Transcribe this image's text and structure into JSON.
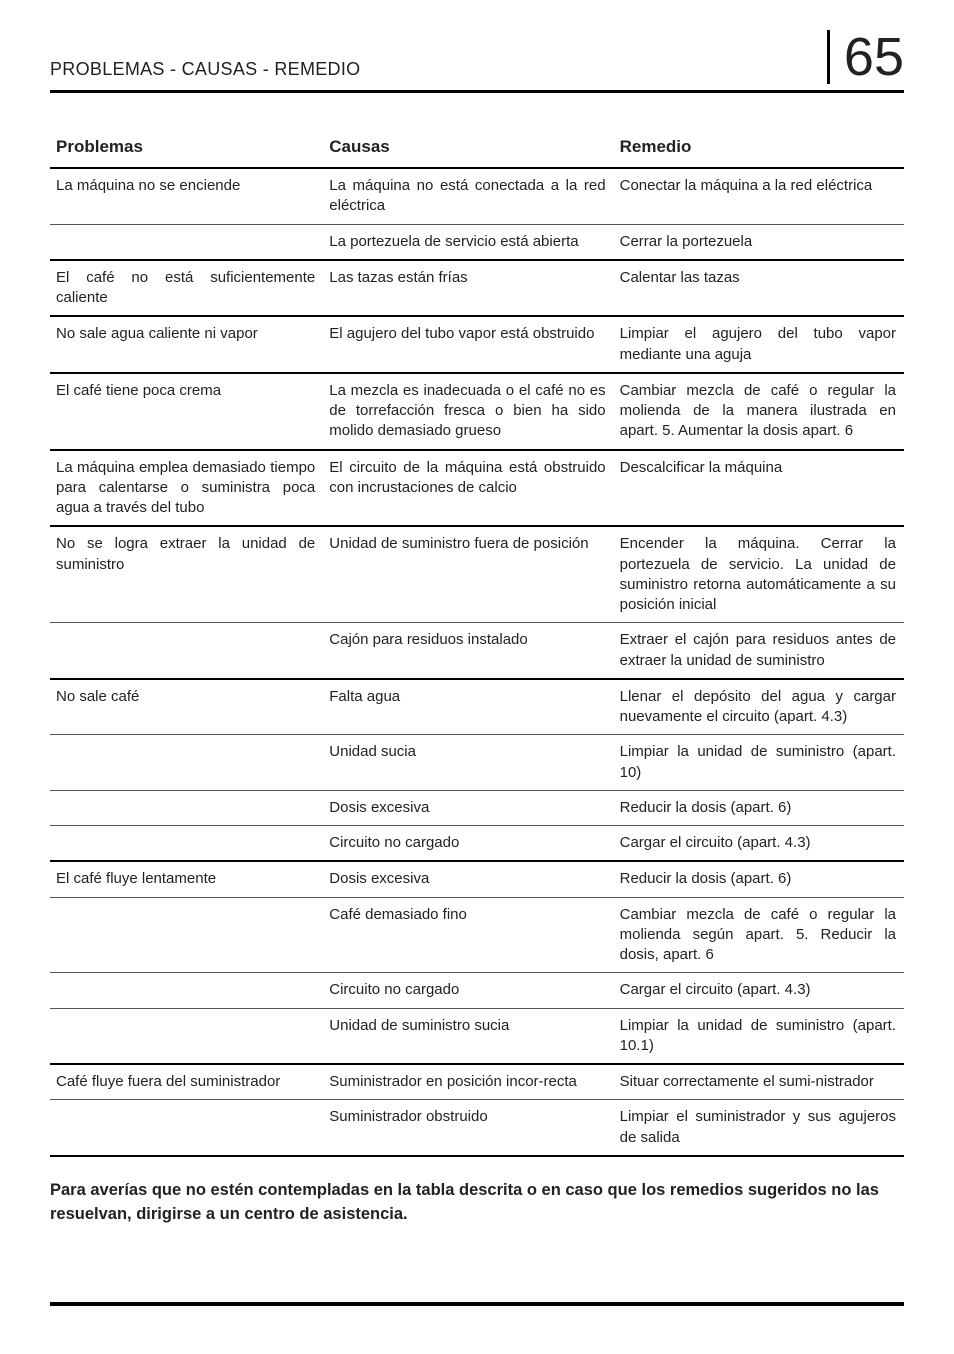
{
  "page": {
    "section_title": "PROBLEMAS - CAUSAS - REMEDIO",
    "number": "65"
  },
  "table": {
    "headers": {
      "problemas": "Problemas",
      "causas": "Causas",
      "remedio": "Remedio"
    },
    "rows": [
      {
        "problema": "La máquina no se enciende",
        "causa": "La máquina no está conectada a la red eléctrica",
        "remedio": "Conectar la máquina a la red eléctrica",
        "sep": "heavy"
      },
      {
        "problema": "",
        "causa": "La portezuela de servicio está abierta",
        "remedio": "Cerrar la portezuela",
        "sep": "thin"
      },
      {
        "problema": "El café no está suficientemente caliente",
        "causa": "Las tazas están frías",
        "remedio": "Calentar las tazas",
        "sep": "heavy"
      },
      {
        "problema": "No sale agua caliente ni vapor",
        "causa": "El agujero del tubo vapor está obstruido",
        "remedio": "Limpiar el agujero del tubo vapor mediante una aguja",
        "sep": "heavy"
      },
      {
        "problema": "El café tiene poca crema",
        "causa": "La mezcla es inadecuada o el café no es de torrefacción fresca o bien ha sido molido demasiado grueso",
        "remedio": "Cambiar mezcla de café o regular la molienda de la manera ilustrada en apart. 5. Aumentar la dosis apart. 6",
        "sep": "heavy"
      },
      {
        "problema": "La máquina emplea demasiado tiempo para calentarse o suministra poca agua a través del tubo",
        "causa": "El circuito de la máquina está obstruido con incrustaciones de calcio",
        "remedio": "Descalcificar la máquina",
        "sep": "heavy"
      },
      {
        "problema": "No se logra extraer la unidad de suministro",
        "causa": "Unidad de suministro fuera de posición",
        "remedio": "Encender la máquina. Cerrar la portezuela de servicio. La unidad de suministro retorna automáticamente a su posición inicial",
        "sep": "heavy"
      },
      {
        "problema": "",
        "causa": "Cajón para residuos instalado",
        "remedio": "Extraer el cajón para residuos antes de extraer la unidad de suministro",
        "sep": "thin"
      },
      {
        "problema": "No sale café",
        "causa": "Falta agua",
        "remedio": "Llenar el depósito del agua y cargar nuevamente el circuito (apart. 4.3)",
        "sep": "heavy"
      },
      {
        "problema": "",
        "causa": "Unidad sucia",
        "remedio": "Limpiar la unidad de suministro (apart. 10)",
        "sep": "thin"
      },
      {
        "problema": "",
        "causa": "Dosis excesiva",
        "remedio": "Reducir la dosis (apart. 6)",
        "sep": "thin"
      },
      {
        "problema": "",
        "causa": "Circuito no cargado",
        "remedio": "Cargar el circuito (apart. 4.3)",
        "sep": "thin"
      },
      {
        "problema": "El café fluye lentamente",
        "causa": "Dosis excesiva",
        "remedio": "Reducir la dosis (apart. 6)",
        "sep": "heavy"
      },
      {
        "problema": "",
        "causa": "Café demasiado fino",
        "remedio": "Cambiar mezcla de café o regular la molienda según apart. 5. Reducir la dosis, apart. 6",
        "sep": "thin"
      },
      {
        "problema": "",
        "causa": "Circuito no cargado",
        "remedio": "Cargar el circuito (apart. 4.3)",
        "sep": "thin"
      },
      {
        "problema": "",
        "causa": "Unidad de suministro sucia",
        "remedio": "Limpiar la unidad de suministro (apart. 10.1)",
        "sep": "thin"
      },
      {
        "problema": "Café fluye fuera del suministrador",
        "causa": "Suministrador en posición incor-recta",
        "remedio": "Situar correctamente el sumi-nistrador",
        "sep": "heavy"
      },
      {
        "problema": "",
        "causa": "Suministrador obstruido",
        "remedio": "Limpiar el suministrador y sus agujeros de salida",
        "sep": "thin"
      }
    ]
  },
  "footnote": "Para averías que no estén contempladas en la tabla descrita o en caso que los remedios sugeridos no las resuelvan, dirigirse a un centro de asistencia.",
  "style": {
    "heavy_border": "2px solid #000",
    "thin_border": "1px solid #555",
    "bg": "#ffffff",
    "text_color": "#222",
    "title_font_size": 18,
    "page_number_font_size": 54,
    "body_font_size": 15,
    "header_font_size": 17,
    "footnote_font_size": 16.5
  }
}
